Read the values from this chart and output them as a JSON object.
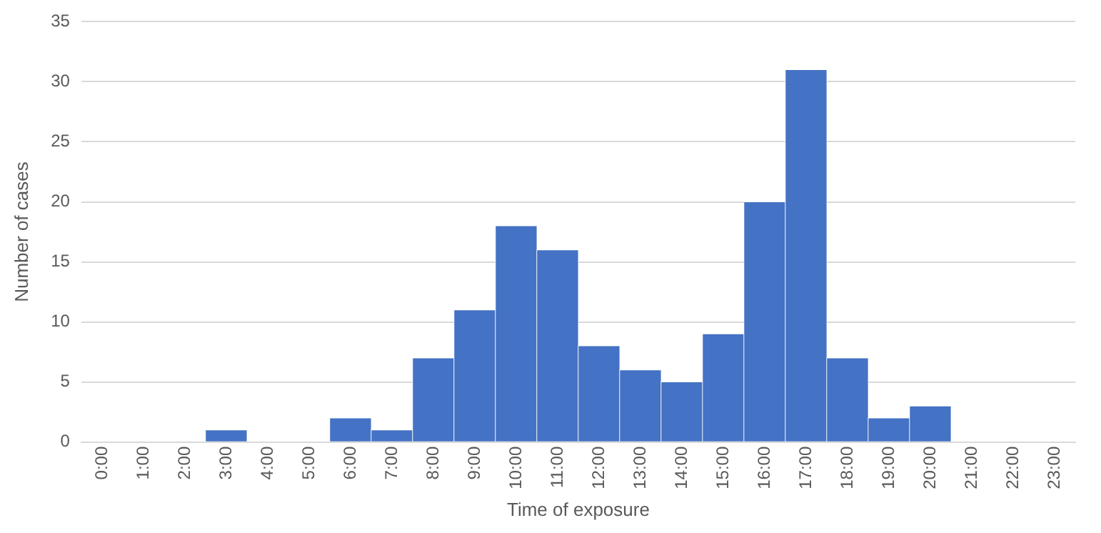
{
  "chart_data": {
    "type": "bar",
    "xlabel": "Time of exposure",
    "ylabel": "Number of cases",
    "categories": [
      "0:00",
      "1:00",
      "2:00",
      "3:00",
      "4:00",
      "5:00",
      "6:00",
      "7:00",
      "8:00",
      "9:00",
      "10:00",
      "11:00",
      "12:00",
      "13:00",
      "14:00",
      "15:00",
      "16:00",
      "17:00",
      "18:00",
      "19:00",
      "20:00",
      "21:00",
      "22:00",
      "23:00"
    ],
    "values": [
      0,
      0,
      0,
      1,
      0,
      0,
      2,
      1,
      7,
      11,
      18,
      16,
      8,
      6,
      5,
      9,
      20,
      31,
      7,
      2,
      3,
      0,
      0,
      0
    ],
    "color": "#4472c4",
    "ylim": [
      0,
      35
    ],
    "yticks": [
      0,
      5,
      10,
      15,
      20,
      25,
      30,
      35
    ],
    "grid": "y",
    "legend": false
  }
}
